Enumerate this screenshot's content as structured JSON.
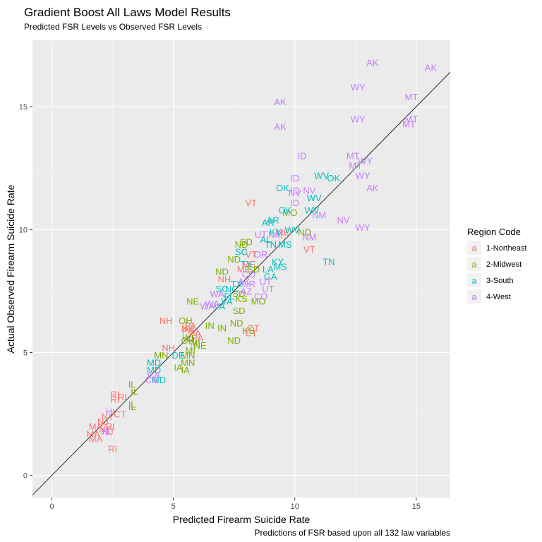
{
  "chart_data": {
    "type": "scatter",
    "title": "Gradient Boost All Laws Model Results",
    "subtitle": "Predicted FSR Levels vs Observed FSR Levels",
    "xlabel": "Predicted Firearm Suicide Rate",
    "ylabel": "Actual Observed Firearm Suicide Rate",
    "caption": "Predictions of FSR based upon all 132 law variables",
    "xlim": [
      -0.8,
      16.4
    ],
    "ylim": [
      -0.9,
      17.7
    ],
    "x_ticks": [
      0,
      5,
      10,
      15
    ],
    "y_ticks": [
      0,
      5,
      10,
      15
    ],
    "grid": true,
    "reference_line": {
      "slope": 1,
      "intercept": 0
    },
    "legend": {
      "title": "Region Code",
      "placement": "right",
      "glyph": "a",
      "entries": [
        {
          "name": "1-Northeast",
          "color": "#F8766D"
        },
        {
          "name": "2-Midwest",
          "color": "#7CAE00"
        },
        {
          "name": "3-South",
          "color": "#00BFC4"
        },
        {
          "name": "4-West",
          "color": "#C77CFF"
        }
      ]
    },
    "series": [
      {
        "name": "1-Northeast",
        "color": "#F8766D",
        "points": [
          {
            "label": "VT",
            "x": 8.2,
            "y": 11.1
          },
          {
            "label": "VT",
            "x": 8.2,
            "y": 9.0
          },
          {
            "label": "VT",
            "x": 10.6,
            "y": 9.2
          },
          {
            "label": "ME",
            "x": 9.5,
            "y": 9.9
          },
          {
            "label": "ME",
            "x": 8.1,
            "y": 8.6
          },
          {
            "label": "ME",
            "x": 7.9,
            "y": 8.4
          },
          {
            "label": "NH",
            "x": 7.1,
            "y": 8.0
          },
          {
            "label": "NH",
            "x": 4.7,
            "y": 6.3
          },
          {
            "label": "NH",
            "x": 5.6,
            "y": 6.0
          },
          {
            "label": "NH",
            "x": 4.8,
            "y": 5.2
          },
          {
            "label": "PA",
            "x": 5.7,
            "y": 6.1
          },
          {
            "label": "PA",
            "x": 5.6,
            "y": 5.9
          },
          {
            "label": "PA",
            "x": 5.9,
            "y": 5.8
          },
          {
            "label": "PA",
            "x": 6.0,
            "y": 5.6
          },
          {
            "label": "CT",
            "x": 8.3,
            "y": 6.0
          },
          {
            "label": "CT",
            "x": 8.2,
            "y": 5.8
          },
          {
            "label": "CT",
            "x": 2.8,
            "y": 2.5
          },
          {
            "label": "RI",
            "x": 2.6,
            "y": 3.3
          },
          {
            "label": "RI",
            "x": 2.9,
            "y": 3.2
          },
          {
            "label": "RI",
            "x": 2.6,
            "y": 3.1
          },
          {
            "label": "RI",
            "x": 2.4,
            "y": 2.0
          },
          {
            "label": "RI",
            "x": 2.5,
            "y": 1.1
          },
          {
            "label": "NJ",
            "x": 2.3,
            "y": 1.8
          },
          {
            "label": "NJ",
            "x": 2.1,
            "y": 2.2
          },
          {
            "label": "NY",
            "x": 2.2,
            "y": 1.9
          },
          {
            "label": "NY",
            "x": 2.3,
            "y": 2.4
          },
          {
            "label": "MA",
            "x": 1.8,
            "y": 2.0
          },
          {
            "label": "MA",
            "x": 1.7,
            "y": 1.7
          },
          {
            "label": "MA",
            "x": 1.8,
            "y": 1.5
          }
        ]
      },
      {
        "name": "2-Midwest",
        "color": "#7CAE00",
        "points": [
          {
            "label": "SD",
            "x": 8.0,
            "y": 9.5
          },
          {
            "label": "SD",
            "x": 8.3,
            "y": 8.4
          },
          {
            "label": "SD",
            "x": 7.7,
            "y": 7.4
          },
          {
            "label": "SD",
            "x": 7.7,
            "y": 6.7
          },
          {
            "label": "ND",
            "x": 7.8,
            "y": 9.4
          },
          {
            "label": "ND",
            "x": 7.5,
            "y": 8.8
          },
          {
            "label": "ND",
            "x": 7.0,
            "y": 8.3
          },
          {
            "label": "ND",
            "x": 7.6,
            "y": 6.2
          },
          {
            "label": "ND",
            "x": 7.5,
            "y": 5.5
          },
          {
            "label": "ND",
            "x": 10.4,
            "y": 9.9
          },
          {
            "label": "MO",
            "x": 9.8,
            "y": 10.7
          },
          {
            "label": "MO",
            "x": 8.5,
            "y": 7.1
          },
          {
            "label": "KS",
            "x": 7.8,
            "y": 7.2
          },
          {
            "label": "KS",
            "x": 8.1,
            "y": 5.9
          },
          {
            "label": "NE",
            "x": 5.8,
            "y": 7.1
          },
          {
            "label": "NE",
            "x": 6.1,
            "y": 5.3
          },
          {
            "label": "OH",
            "x": 5.5,
            "y": 6.3
          },
          {
            "label": "OH",
            "x": 5.6,
            "y": 5.5
          },
          {
            "label": "IN",
            "x": 7.0,
            "y": 6.0
          },
          {
            "label": "IN",
            "x": 6.5,
            "y": 6.1
          },
          {
            "label": "MI",
            "x": 5.9,
            "y": 5.4
          },
          {
            "label": "MI",
            "x": 5.7,
            "y": 5.1
          },
          {
            "label": "WI",
            "x": 5.6,
            "y": 5.6
          },
          {
            "label": "MN",
            "x": 4.5,
            "y": 4.9
          },
          {
            "label": "MN",
            "x": 5.6,
            "y": 4.9
          },
          {
            "label": "MN",
            "x": 5.6,
            "y": 4.6
          },
          {
            "label": "IA",
            "x": 5.2,
            "y": 4.4
          },
          {
            "label": "IA",
            "x": 5.5,
            "y": 4.3
          },
          {
            "label": "IL",
            "x": 3.3,
            "y": 3.7
          },
          {
            "label": "IL",
            "x": 3.4,
            "y": 3.4
          },
          {
            "label": "IL",
            "x": 3.3,
            "y": 2.9
          },
          {
            "label": "IL",
            "x": 3.3,
            "y": 2.8
          }
        ]
      },
      {
        "name": "3-South",
        "color": "#00BFC4",
        "points": [
          {
            "label": "OK",
            "x": 9.5,
            "y": 11.7
          },
          {
            "label": "OK",
            "x": 9.6,
            "y": 10.8
          },
          {
            "label": "OK",
            "x": 11.6,
            "y": 12.1
          },
          {
            "label": "WV",
            "x": 11.1,
            "y": 12.2
          },
          {
            "label": "WV",
            "x": 10.8,
            "y": 11.3
          },
          {
            "label": "WV",
            "x": 10.7,
            "y": 10.8
          },
          {
            "label": "WV",
            "x": 9.9,
            "y": 10.0
          },
          {
            "label": "AR",
            "x": 9.1,
            "y": 10.4
          },
          {
            "label": "AR",
            "x": 8.9,
            "y": 10.3
          },
          {
            "label": "KY",
            "x": 9.2,
            "y": 9.9
          },
          {
            "label": "KY",
            "x": 9.3,
            "y": 8.7
          },
          {
            "label": "AL",
            "x": 8.8,
            "y": 9.6
          },
          {
            "label": "TN",
            "x": 9.0,
            "y": 9.4
          },
          {
            "label": "TN",
            "x": 11.4,
            "y": 8.7
          },
          {
            "label": "MS",
            "x": 9.6,
            "y": 9.4
          },
          {
            "label": "MS",
            "x": 9.4,
            "y": 8.5
          },
          {
            "label": "SC",
            "x": 7.8,
            "y": 9.1
          },
          {
            "label": "SC",
            "x": 7.0,
            "y": 7.6
          },
          {
            "label": "LA",
            "x": 8.9,
            "y": 8.4
          },
          {
            "label": "GA",
            "x": 9.0,
            "y": 8.1
          },
          {
            "label": "TX",
            "x": 8.0,
            "y": 8.6
          },
          {
            "label": "TX",
            "x": 7.6,
            "y": 7.8
          },
          {
            "label": "NC",
            "x": 7.4,
            "y": 7.6
          },
          {
            "label": "FL",
            "x": 7.3,
            "y": 7.3
          },
          {
            "label": "VA",
            "x": 7.2,
            "y": 7.1
          },
          {
            "label": "VA",
            "x": 6.9,
            "y": 6.9
          },
          {
            "label": "DE",
            "x": 5.2,
            "y": 4.9
          },
          {
            "label": "MD",
            "x": 4.2,
            "y": 4.6
          },
          {
            "label": "MD",
            "x": 4.2,
            "y": 4.3
          },
          {
            "label": "MD",
            "x": 4.4,
            "y": 3.9
          }
        ]
      },
      {
        "name": "4-West",
        "color": "#C77CFF",
        "points": [
          {
            "label": "AK",
            "x": 13.2,
            "y": 16.8
          },
          {
            "label": "AK",
            "x": 15.6,
            "y": 16.6
          },
          {
            "label": "AK",
            "x": 9.4,
            "y": 15.2
          },
          {
            "label": "AK",
            "x": 9.4,
            "y": 14.2
          },
          {
            "label": "AK",
            "x": 13.2,
            "y": 11.7
          },
          {
            "label": "WY",
            "x": 12.6,
            "y": 15.8
          },
          {
            "label": "WY",
            "x": 12.6,
            "y": 14.5
          },
          {
            "label": "WY",
            "x": 12.8,
            "y": 12.2
          },
          {
            "label": "WY",
            "x": 12.8,
            "y": 10.1
          },
          {
            "label": "WY",
            "x": 12.9,
            "y": 12.8
          },
          {
            "label": "MT",
            "x": 14.8,
            "y": 15.4
          },
          {
            "label": "MT",
            "x": 14.8,
            "y": 14.5
          },
          {
            "label": "MT",
            "x": 14.7,
            "y": 14.3
          },
          {
            "label": "MT",
            "x": 12.4,
            "y": 13.0
          },
          {
            "label": "MT",
            "x": 12.5,
            "y": 12.6
          },
          {
            "label": "ID",
            "x": 10.3,
            "y": 13.0
          },
          {
            "label": "ID",
            "x": 10.0,
            "y": 12.1
          },
          {
            "label": "ID",
            "x": 10.0,
            "y": 11.6
          },
          {
            "label": "ID",
            "x": 10.0,
            "y": 11.1
          },
          {
            "label": "NV",
            "x": 10.6,
            "y": 11.6
          },
          {
            "label": "NV",
            "x": 12.0,
            "y": 10.4
          },
          {
            "label": "NV",
            "x": 10.0,
            "y": 11.5
          },
          {
            "label": "NM",
            "x": 11.0,
            "y": 10.6
          },
          {
            "label": "NM",
            "x": 10.6,
            "y": 9.7
          },
          {
            "label": "NM",
            "x": 9.2,
            "y": 9.8
          },
          {
            "label": "UT",
            "x": 8.6,
            "y": 9.8
          },
          {
            "label": "UT",
            "x": 8.8,
            "y": 7.9
          },
          {
            "label": "UT",
            "x": 8.9,
            "y": 7.6
          },
          {
            "label": "OR",
            "x": 8.6,
            "y": 9.0
          },
          {
            "label": "OR",
            "x": 8.1,
            "y": 7.8
          },
          {
            "label": "CO",
            "x": 8.1,
            "y": 8.2
          },
          {
            "label": "CO",
            "x": 8.6,
            "y": 7.3
          },
          {
            "label": "AZ",
            "x": 7.9,
            "y": 7.9
          },
          {
            "label": "AZ",
            "x": 8.0,
            "y": 7.5
          },
          {
            "label": "WA",
            "x": 6.8,
            "y": 7.4
          },
          {
            "label": "WA",
            "x": 6.6,
            "y": 7.0
          },
          {
            "label": "WA",
            "x": 6.4,
            "y": 6.9
          },
          {
            "label": "CA",
            "x": 4.2,
            "y": 4.1
          },
          {
            "label": "CA",
            "x": 4.1,
            "y": 3.9
          },
          {
            "label": "HI",
            "x": 2.4,
            "y": 2.6
          },
          {
            "label": "HI",
            "x": 2.2,
            "y": 1.8
          }
        ]
      }
    ]
  }
}
